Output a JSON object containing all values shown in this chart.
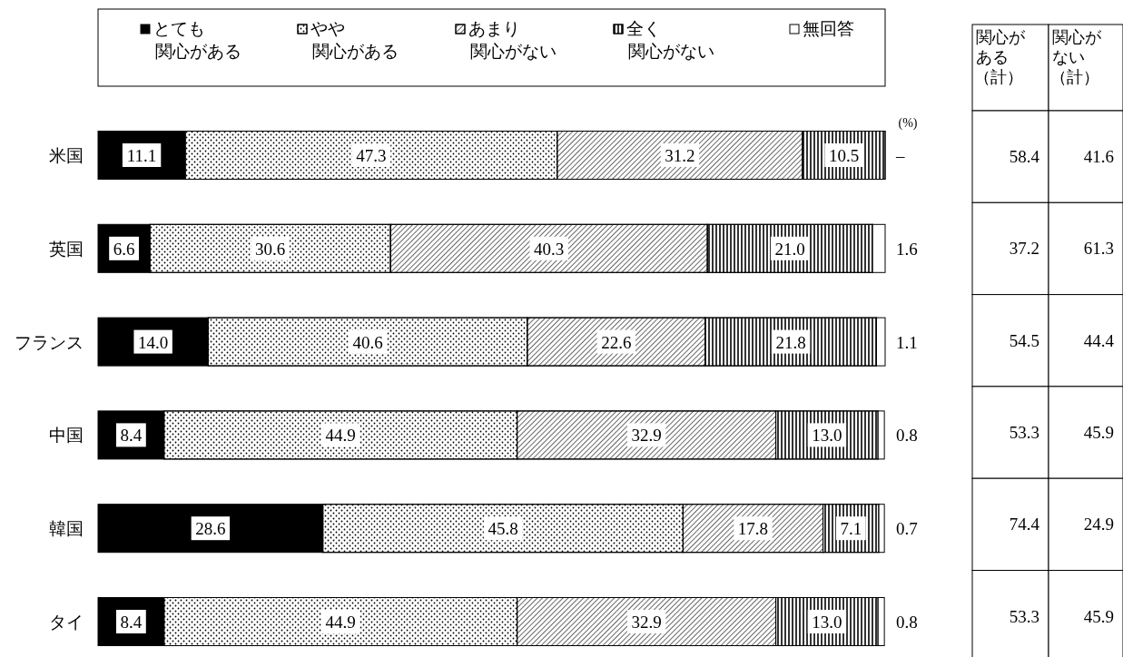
{
  "chart_data": [
    {
      "type": "bar",
      "orientation": "horizontal",
      "stacked": true,
      "categories": [
        "米国",
        "英国",
        "フランス",
        "中国",
        "韓国",
        "タイ"
      ],
      "xlim": [
        0,
        100.1
      ],
      "tick_labels": "y",
      "legend": "top",
      "annotations": [
        "(%)"
      ],
      "series": [
        {
          "name": "とても関心がある",
          "color": "#000000",
          "values": [
            11.1,
            6.6,
            14.0,
            8.4,
            28.6,
            8.4
          ],
          "value_labels": [
            "11.1",
            "6.6",
            "14.0",
            "8.4",
            "28.6",
            "8.4"
          ]
        },
        {
          "name": "やや関心がある",
          "color": "#ffffff",
          "values": [
            47.3,
            30.6,
            40.6,
            44.9,
            45.8,
            44.9
          ],
          "value_labels": [
            "47.3",
            "30.6",
            "40.6",
            "44.9",
            "45.8",
            "44.9"
          ]
        },
        {
          "name": "あまり関心がない",
          "color": "#ffffff",
          "values": [
            31.2,
            40.3,
            22.6,
            32.9,
            17.8,
            32.9
          ],
          "value_labels": [
            "31.2",
            "40.3",
            "22.6",
            "32.9",
            "17.8",
            "32.9"
          ]
        },
        {
          "name": "全く関心がない",
          "color": "#ffffff",
          "values": [
            10.5,
            21.0,
            21.8,
            13.0,
            7.1,
            13.0
          ],
          "value_labels": [
            "10.5",
            "21.0",
            "21.8",
            "13.0",
            "7.1",
            "13.0"
          ]
        },
        {
          "name": "無回答",
          "color": "#ffffff",
          "values": [
            null,
            1.6,
            1.1,
            0.8,
            0.7,
            0.8
          ],
          "value_labels": [
            "–",
            "1.6",
            "1.1",
            "0.8",
            "0.7",
            "0.8"
          ]
        }
      ]
    },
    {
      "type": "other",
      "annotations": [
        "関心がある（計）",
        "関心がない（計）",
        "58.4",
        "41.6",
        "37.2",
        "61.3",
        "54.5",
        "44.4",
        "53.3",
        "45.9",
        "74.4",
        "24.9",
        "53.3",
        "45.9"
      ]
    }
  ]
}
